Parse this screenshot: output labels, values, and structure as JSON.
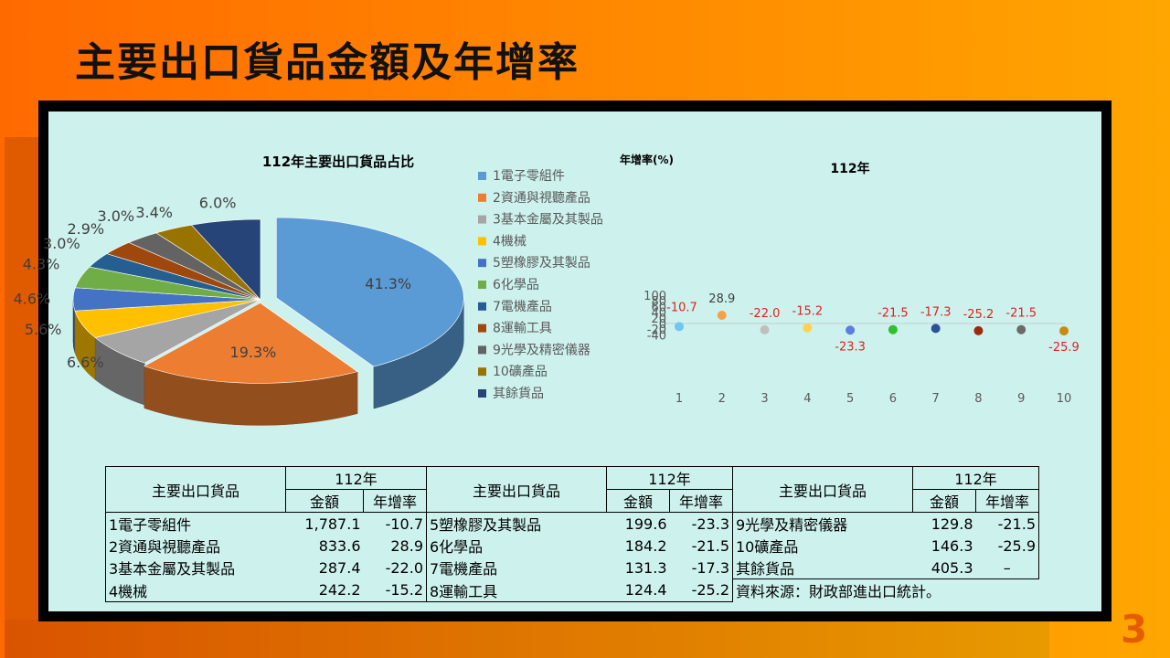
{
  "title": "主要出口貨品金額及年增率",
  "page_number": "3",
  "pie_chart": {
    "title": "112年主要出口貨品占比",
    "legend": [
      "1電子零組件",
      "2資通與視聽產品",
      "3基本金屬及其製品",
      "4機械",
      "5塑橡膠及其製品",
      "6化學品",
      "7電機產品",
      "8運輸工具",
      "9光學及精密儀器",
      "10礦產品",
      "其餘貨品"
    ]
  },
  "scatter_chart": {
    "title": "112年",
    "ylabel": "年增率(%)"
  },
  "chart_data": [
    {
      "type": "pie",
      "title": "112年主要出口貨品占比",
      "categories": [
        "1電子零組件",
        "2資通與視聽產品",
        "3基本金屬及其製品",
        "4機械",
        "5塑橡膠及其製品",
        "6化學品",
        "7電機產品",
        "8運輸工具",
        "9光學及精密儀器",
        "10礦產品",
        "其餘貨品"
      ],
      "values": [
        41.3,
        19.3,
        6.6,
        5.6,
        4.6,
        4.3,
        3.0,
        2.9,
        3.0,
        3.4,
        6.0
      ],
      "labels": [
        "41.3%",
        "19.3%",
        "6.6%",
        "5.6%",
        "4.6%",
        "4.3%",
        "3.0%",
        "2.9%",
        "3.0%",
        "3.4%",
        "6.0%"
      ],
      "colors": [
        "#5b9bd5",
        "#ed7d31",
        "#a5a5a5",
        "#ffc000",
        "#4472c4",
        "#70ad47",
        "#255e91",
        "#9e480e",
        "#636363",
        "#997300",
        "#264478"
      ],
      "legend_position": "right"
    },
    {
      "type": "scatter",
      "title": "112年",
      "ylabel": "年增率(%)",
      "x": [
        1,
        2,
        3,
        4,
        5,
        6,
        7,
        8,
        9,
        10
      ],
      "y": [
        -10.7,
        28.9,
        -22.0,
        -15.2,
        -23.3,
        -21.5,
        -17.3,
        -25.2,
        -21.5,
        -25.9
      ],
      "point_labels": [
        "-10.7",
        "28.9",
        "-22.0",
        "-15.2",
        "-23.3",
        "-21.5",
        "-17.3",
        "-25.2",
        "-21.5",
        "-25.9"
      ],
      "point_colors": [
        "#6fc6f2",
        "#f7a04b",
        "#bfbfbf",
        "#ffd24d",
        "#5b7fe0",
        "#2fbf2f",
        "#2e4f9c",
        "#a0290c",
        "#6b6b6b",
        "#c98a10"
      ],
      "yticks": [
        100,
        80,
        60,
        40,
        20,
        0,
        -20,
        -40
      ],
      "ylim": [
        -40,
        100
      ],
      "xlim": [
        1,
        10
      ],
      "grid": false
    }
  ],
  "table": {
    "header": {
      "item": "主要出口貨品",
      "year": "112年",
      "amount": "金額",
      "growth": "年增率"
    },
    "col1": [
      {
        "name": "1電子零組件",
        "amount": "1,787.1",
        "growth": "-10.7"
      },
      {
        "name": "2資通與視聽產品",
        "amount": "833.6",
        "growth": "28.9"
      },
      {
        "name": "3基本金屬及其製品",
        "amount": "287.4",
        "growth": "-22.0"
      },
      {
        "name": "4機械",
        "amount": "242.2",
        "growth": "-15.2"
      }
    ],
    "col2": [
      {
        "name": "5塑橡膠及其製品",
        "amount": "199.6",
        "growth": "-23.3"
      },
      {
        "name": "6化學品",
        "amount": "184.2",
        "growth": "-21.5"
      },
      {
        "name": "7電機產品",
        "amount": "131.3",
        "growth": "-17.3"
      },
      {
        "name": "8運輸工具",
        "amount": "124.4",
        "growth": "-25.2"
      }
    ],
    "col3": [
      {
        "name": "9光學及精密儀器",
        "amount": "129.8",
        "growth": "-21.5"
      },
      {
        "name": "10礦產品",
        "amount": "146.3",
        "growth": "-25.9"
      },
      {
        "name": "其餘貨品",
        "amount": "405.3",
        "growth": "–"
      }
    ],
    "source": "資料來源：財政部進出口統計。"
  }
}
